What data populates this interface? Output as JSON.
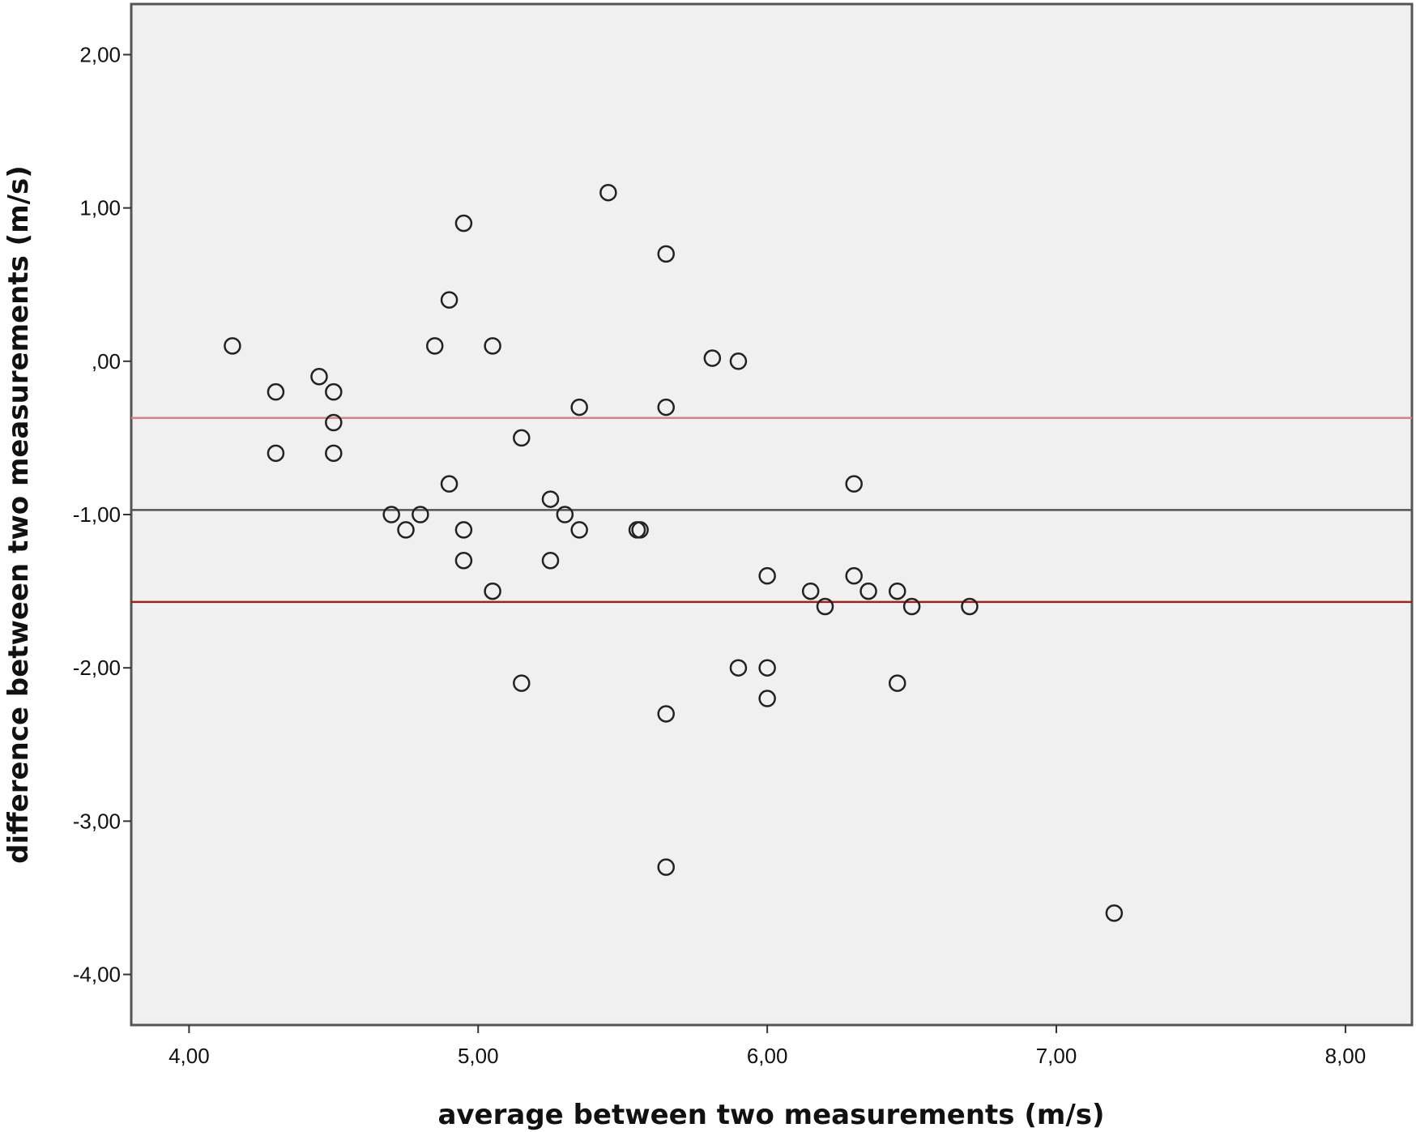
{
  "chart_data": {
    "type": "scatter",
    "title": "",
    "xlabel": "average between two measurements (m/s)",
    "ylabel": "difference between two measurements (m/s)",
    "xlim": [
      3.8,
      8.23
    ],
    "ylim": [
      -4.33,
      2.33
    ],
    "x_ticks": [
      {
        "value": 4,
        "label": "4,00"
      },
      {
        "value": 5,
        "label": "5,00"
      },
      {
        "value": 6,
        "label": "6,00"
      },
      {
        "value": 7,
        "label": "7,00"
      },
      {
        "value": 8,
        "label": "8,00"
      }
    ],
    "y_ticks": [
      {
        "value": 2,
        "label": "2,00"
      },
      {
        "value": 1,
        "label": "1,00"
      },
      {
        "value": 0,
        "label": ",00"
      },
      {
        "value": -1,
        "label": "-1,00"
      },
      {
        "value": -2,
        "label": "-2,00"
      },
      {
        "value": -3,
        "label": "-3,00"
      },
      {
        "value": -4,
        "label": "-4,00"
      }
    ],
    "grid": false,
    "plot_background": "#f0f0f0",
    "marker_color": "#222222",
    "reference_lines": [
      {
        "y": -0.37,
        "color": "#d9808a"
      },
      {
        "y": -0.97,
        "color": "#555555"
      },
      {
        "y": -1.57,
        "color": "#a02020"
      }
    ],
    "points": [
      {
        "x": 4.15,
        "y": 0.1
      },
      {
        "x": 4.3,
        "y": -0.2
      },
      {
        "x": 4.3,
        "y": -0.6
      },
      {
        "x": 4.45,
        "y": -0.1
      },
      {
        "x": 4.5,
        "y": -0.2
      },
      {
        "x": 4.5,
        "y": -0.4
      },
      {
        "x": 4.5,
        "y": -0.6
      },
      {
        "x": 4.7,
        "y": -1.0
      },
      {
        "x": 4.75,
        "y": -1.1
      },
      {
        "x": 4.8,
        "y": -1.0
      },
      {
        "x": 4.85,
        "y": 0.1
      },
      {
        "x": 4.9,
        "y": 0.4
      },
      {
        "x": 4.9,
        "y": -0.8
      },
      {
        "x": 4.95,
        "y": 0.9
      },
      {
        "x": 4.95,
        "y": -1.1
      },
      {
        "x": 4.95,
        "y": -1.3
      },
      {
        "x": 5.05,
        "y": 0.1
      },
      {
        "x": 5.05,
        "y": -1.5
      },
      {
        "x": 5.15,
        "y": -0.5
      },
      {
        "x": 5.15,
        "y": -2.1
      },
      {
        "x": 5.25,
        "y": -0.9
      },
      {
        "x": 5.25,
        "y": -1.3
      },
      {
        "x": 5.3,
        "y": -1.0
      },
      {
        "x": 5.35,
        "y": -0.3
      },
      {
        "x": 5.35,
        "y": -1.1
      },
      {
        "x": 5.45,
        "y": 1.1
      },
      {
        "x": 5.55,
        "y": -1.1
      },
      {
        "x": 5.56,
        "y": -1.1
      },
      {
        "x": 5.65,
        "y": 0.7
      },
      {
        "x": 5.65,
        "y": -0.3
      },
      {
        "x": 5.65,
        "y": -2.3
      },
      {
        "x": 5.65,
        "y": -3.3
      },
      {
        "x": 5.81,
        "y": 0.02
      },
      {
        "x": 5.9,
        "y": 0.0
      },
      {
        "x": 5.9,
        "y": -2.0
      },
      {
        "x": 6.0,
        "y": -1.4
      },
      {
        "x": 6.0,
        "y": -2.0
      },
      {
        "x": 6.0,
        "y": -2.2
      },
      {
        "x": 6.15,
        "y": -1.5
      },
      {
        "x": 6.2,
        "y": -1.6
      },
      {
        "x": 6.3,
        "y": -0.8
      },
      {
        "x": 6.3,
        "y": -1.4
      },
      {
        "x": 6.35,
        "y": -1.5
      },
      {
        "x": 6.45,
        "y": -1.5
      },
      {
        "x": 6.45,
        "y": -2.1
      },
      {
        "x": 6.5,
        "y": -1.6
      },
      {
        "x": 6.7,
        "y": -1.6
      },
      {
        "x": 7.2,
        "y": -3.6
      }
    ]
  }
}
